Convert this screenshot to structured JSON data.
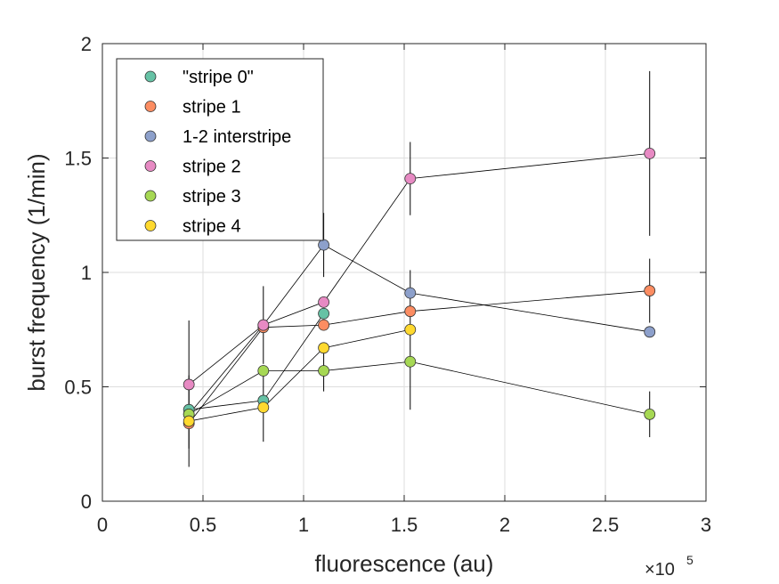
{
  "chart_data": {
    "type": "line",
    "xlabel": "fluorescence (au)",
    "ylabel": "burst frequency (1/min)",
    "x_exponent_label": "×10",
    "x_exponent_power": "5",
    "xlim": [
      0,
      3
    ],
    "ylim": [
      0,
      2
    ],
    "x_scale_note": "×10^5",
    "x_ticks": [
      0,
      0.5,
      1,
      1.5,
      2,
      2.5,
      3
    ],
    "x_tick_labels": [
      "0",
      "0.5",
      "1",
      "1.5",
      "2",
      "2.5",
      "3"
    ],
    "y_ticks": [
      0,
      0.5,
      1,
      1.5,
      2
    ],
    "y_tick_labels": [
      "0",
      "0.5",
      "1",
      "1.5",
      "2"
    ],
    "grid": true,
    "legend_position": "top-left",
    "series": [
      {
        "name": "\"stripe 0\"",
        "color": "#66c2a5",
        "x": [
          0.43,
          0.8,
          1.1
        ],
        "y": [
          0.4,
          0.44,
          0.82
        ],
        "err": [
          0.0,
          0.0,
          0.0
        ]
      },
      {
        "name": "stripe 1",
        "color": "#fc8d62",
        "x": [
          0.43,
          0.8,
          1.1,
          1.53,
          2.72
        ],
        "y": [
          0.34,
          0.76,
          0.77,
          0.83,
          0.92
        ],
        "err": [
          0.0,
          0.0,
          0.0,
          0.0,
          0.14
        ]
      },
      {
        "name": "1-2 interstripe",
        "color": "#8da0cb",
        "x": [
          0.43,
          0.8,
          1.1,
          1.53,
          2.72
        ],
        "y": [
          0.38,
          0.77,
          1.12,
          0.91,
          0.74
        ],
        "err": [
          0.0,
          0.0,
          0.14,
          0.1,
          0.0
        ]
      },
      {
        "name": "stripe 2",
        "color": "#e78ac3",
        "x": [
          0.43,
          0.8,
          1.1,
          1.53,
          2.72
        ],
        "y": [
          0.51,
          0.77,
          0.87,
          1.41,
          1.52
        ],
        "err": [
          0.28,
          0.17,
          0.0,
          0.16,
          0.36
        ]
      },
      {
        "name": "stripe 3",
        "color": "#a6d854",
        "x": [
          0.43,
          0.8,
          1.1,
          1.53,
          2.72
        ],
        "y": [
          0.38,
          0.57,
          0.57,
          0.61,
          0.38
        ],
        "err": [
          0.0,
          0.0,
          0.09,
          0.21,
          0.1
        ]
      },
      {
        "name": "stripe 4",
        "color": "#ffd92f",
        "x": [
          0.43,
          0.8,
          1.1,
          1.53
        ],
        "y": [
          0.35,
          0.41,
          0.67,
          0.75
        ],
        "err": [
          0.2,
          0.15,
          0.0,
          0.0
        ]
      }
    ]
  }
}
